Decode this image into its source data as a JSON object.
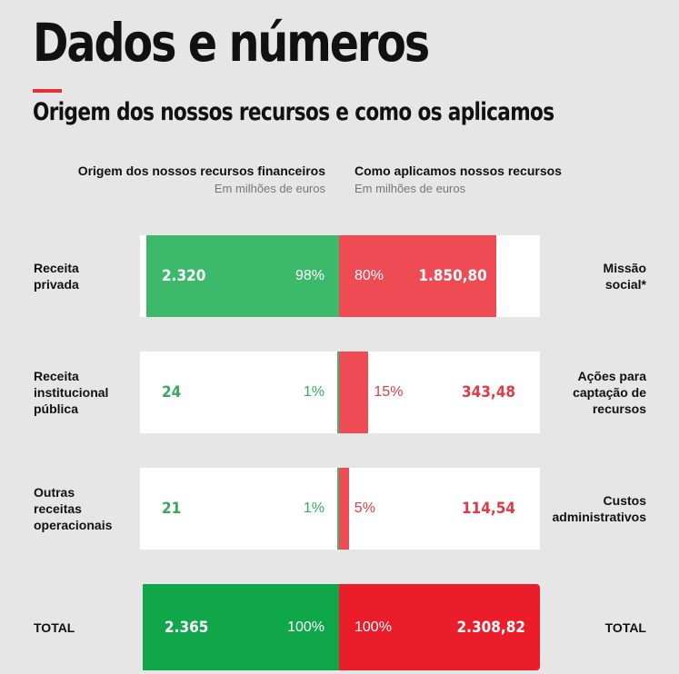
{
  "title": "Dados e números",
  "subtitle": "Origem dos nossos recursos e como os aplicamos",
  "left_header": {
    "title": "Origem dos nossos recursos financeiros",
    "unit": "Em milhões de euros"
  },
  "right_header": {
    "title": "Como aplicamos nossos recursos",
    "unit": "Em milhões de euros"
  },
  "colors": {
    "accent": "#e03236",
    "green": "#3cb96a",
    "green_text": "#37a85e",
    "red": "#ef4b54",
    "red_text": "#e23a45",
    "total_green": "#10a64a",
    "total_red": "#ec1d2a"
  },
  "chart_data": {
    "type": "bar",
    "rows": [
      {
        "left_label": "Receita\nprivada",
        "source_value": "2.320",
        "source_percent": 98,
        "source_percent_label": "98%",
        "right_label": "Missão\nsocial*",
        "use_value": "1.850,80",
        "use_percent": 80,
        "use_percent_label": "80%"
      },
      {
        "left_label": "Receita\ninstitucional\npública",
        "source_value": "24",
        "source_percent": 1,
        "source_percent_label": "1%",
        "right_label": "Ações para\ncaptação de\nrecursos",
        "use_value": "343,48",
        "use_percent": 15,
        "use_percent_label": "15%"
      },
      {
        "left_label": "Outras\nreceitas\noperacionais",
        "source_value": "21",
        "source_percent": 1,
        "source_percent_label": "1%",
        "right_label": "Custos\nadministrativos",
        "use_value": "114,54",
        "use_percent": 5,
        "use_percent_label": "5%"
      }
    ],
    "total": {
      "left_label": "TOTAL",
      "source_value": "2.365",
      "source_percent": 100,
      "source_percent_label": "100%",
      "right_label": "TOTAL",
      "use_value": "2.308,82",
      "use_percent": 100,
      "use_percent_label": "100%"
    }
  }
}
